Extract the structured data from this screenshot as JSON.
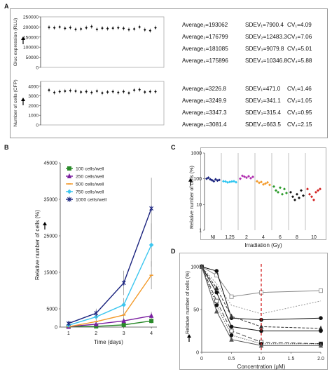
{
  "panel_labels": {
    "a": "A",
    "b": "B",
    "c": "C",
    "d": "D"
  },
  "chart_data": [
    {
      "id": "A-top",
      "type": "scatter",
      "ylabel": "Gluc expression (RLU)",
      "yticks": [
        0,
        50000,
        100000,
        150000,
        200000,
        250000
      ],
      "ytick_labels": [
        "0",
        "50000",
        "100000",
        "150000",
        "200000",
        "250000"
      ],
      "ylim": [
        0,
        250000
      ],
      "values": [
        198000,
        196000,
        200000,
        193000,
        197000,
        188000,
        190000,
        196000,
        202000,
        188000,
        194000,
        192000,
        194000,
        196000,
        193000,
        187000,
        190000,
        200000,
        186000,
        182000,
        196000
      ],
      "stats": [
        {
          "avg": "Average₁=193062",
          "sd": "SDEV₁=7900.4",
          "cv": "CV₁=4.09"
        },
        {
          "avg": "Average₂=176799",
          "sd": "SDEV₂=12483.3",
          "cv": "CV₂=7.06"
        },
        {
          "avg": "Average₃=181085",
          "sd": "SDEV₃=9079.8",
          "cv": "CV₃=5.01"
        },
        {
          "avg": "Average₄=175896",
          "sd": "SDEV₄=10346.8",
          "cv": "CV₄=5.88"
        }
      ]
    },
    {
      "id": "A-bottom",
      "type": "scatter",
      "ylabel": "Number of cells (CFP)",
      "yticks": [
        0,
        1000,
        2000,
        3000,
        4000
      ],
      "ytick_labels": [
        "0",
        "1000",
        "2000",
        "3000",
        "4000"
      ],
      "ylim": [
        0,
        4500
      ],
      "values": [
        3600,
        3350,
        3450,
        3500,
        3550,
        3500,
        3400,
        3450,
        3350,
        3500,
        3300,
        3400,
        3450,
        3350,
        3450,
        3300,
        3600,
        3650,
        3400,
        3450,
        3450
      ],
      "stats": [
        {
          "avg": "Average₁=3226.8",
          "sd": "SDEV₁=471.0",
          "cv": "CV₁=1.46"
        },
        {
          "avg": "Average₂=3249.9",
          "sd": "SDEV₂=341.1",
          "cv": "CV₂=1.05"
        },
        {
          "avg": "Average₃=3347.3",
          "sd": "SDEV₃=315.4",
          "cv": "CV₃=0.95"
        },
        {
          "avg": "Average₄=3081.4",
          "sd": "SDEV₄=663.5",
          "cv": "CV₄=2.15"
        }
      ]
    },
    {
      "id": "B",
      "type": "line",
      "xlabel": "Time (days)",
      "ylabel": "Relative number of cells (%)",
      "x": [
        1,
        2,
        3,
        4
      ],
      "xlim": [
        0.7,
        4.2
      ],
      "ylim": [
        0,
        45000
      ],
      "yticks": [
        0,
        5000,
        15000,
        25000,
        35000,
        45000
      ],
      "ytick_labels": [
        "0",
        "5000",
        "15000",
        "25000",
        "35000",
        "45000"
      ],
      "xticks": [
        "1",
        "2",
        "3",
        "4"
      ],
      "series": [
        {
          "name": "100 cells/well",
          "color": "#2a8a2a",
          "marker": "square",
          "values": [
            100,
            200,
            600,
            1700
          ]
        },
        {
          "name": "250 cells/well",
          "color": "#7a1fa0",
          "marker": "triangle",
          "values": [
            100,
            800,
            1700,
            3100
          ]
        },
        {
          "name": "500 cells/well",
          "color": "#f39a2a",
          "marker": "bar",
          "values": [
            100,
            1500,
            3300,
            14200
          ]
        },
        {
          "name": "750 cells/well",
          "color": "#3cc6ef",
          "marker": "diamond",
          "values": [
            500,
            2800,
            6100,
            22500
          ]
        },
        {
          "name": "1000 cells/well",
          "color": "#1a237e",
          "marker": "x",
          "values": [
            1000,
            3800,
            12100,
            32500
          ]
        }
      ]
    },
    {
      "id": "C",
      "type": "scatter",
      "xlabel": "Irradiation (Gy)",
      "ylabel": "Relative number of cells (%)",
      "yscale": "log",
      "ylim": [
        1,
        1000
      ],
      "yticks": [
        1,
        10,
        100,
        1000
      ],
      "ytick_labels": [
        "1",
        "10",
        "100",
        "1000"
      ],
      "xticks": [
        "NI",
        "1.25",
        "2",
        "4",
        "6",
        "8",
        "10"
      ],
      "groups": [
        {
          "color": "#1a237e",
          "values": [
            100,
            110,
            95,
            88,
            80,
            95,
            85,
            90
          ]
        },
        {
          "color": "#2cc5f0",
          "values": [
            80,
            78,
            72,
            75,
            78,
            80,
            73
          ]
        },
        {
          "color": "#b12fb0",
          "values": [
            100,
            130,
            120,
            110,
            125,
            105,
            118
          ]
        },
        {
          "color": "#f39a2a",
          "values": [
            80,
            70,
            75,
            60,
            65,
            72,
            58
          ]
        },
        {
          "color": "#2a9a2a",
          "values": [
            50,
            35,
            30,
            45,
            25,
            40,
            28
          ]
        },
        {
          "color": "#111111",
          "values": [
            30,
            20,
            15,
            25,
            18,
            35,
            22
          ]
        },
        {
          "color": "#d22020",
          "values": [
            40,
            25,
            20,
            15,
            30,
            35,
            40
          ]
        }
      ]
    },
    {
      "id": "D",
      "type": "line",
      "xlabel": "Concentration (μM)",
      "ylabel": "Relative number of cells (%)",
      "xlim": [
        0,
        2.0
      ],
      "ylim": [
        0,
        100
      ],
      "xticks": [
        0,
        0.5,
        1.0,
        1.5,
        2.0
      ],
      "xtick_labels": [
        "0",
        "0.5",
        "1.0",
        "1.5",
        "2.0"
      ],
      "yticks": [
        0,
        50,
        100
      ],
      "ytick_labels": [
        "0",
        "50",
        "100"
      ],
      "vline": 1.0,
      "series": [
        {
          "color": "#888888",
          "dash": "",
          "marker": "square",
          "points": [
            [
              0,
              100
            ],
            [
              0.25,
              90
            ],
            [
              0.5,
              65
            ],
            [
              1.0,
              70
            ],
            [
              2.0,
              72
            ]
          ]
        },
        {
          "color": "#999999",
          "dash": "2,2",
          "marker": "none",
          "points": [
            [
              0,
              100
            ],
            [
              0.25,
              80
            ],
            [
              0.5,
              55
            ],
            [
              1.0,
              45
            ],
            [
              2.0,
              60
            ]
          ]
        },
        {
          "color": "#111111",
          "dash": "",
          "marker": "circle",
          "points": [
            [
              0,
              100
            ],
            [
              0.25,
              95
            ],
            [
              0.5,
              40
            ],
            [
              1.0,
              38
            ],
            [
              2.0,
              40
            ]
          ]
        },
        {
          "color": "#333333",
          "dash": "4,2",
          "marker": "triangle",
          "points": [
            [
              0,
              100
            ],
            [
              0.25,
              75
            ],
            [
              0.5,
              42
            ],
            [
              1.0,
              30
            ],
            [
              2.0,
              28
            ]
          ]
        },
        {
          "color": "#111111",
          "dash": "",
          "marker": "circle",
          "points": [
            [
              0,
              100
            ],
            [
              0.25,
              70
            ],
            [
              0.5,
              30
            ],
            [
              1.0,
              25
            ],
            [
              2.0,
              25
            ]
          ]
        },
        {
          "color": "#444444",
          "dash": "6,3",
          "marker": "square",
          "points": [
            [
              0,
              100
            ],
            [
              0.25,
              60
            ],
            [
              0.5,
              25
            ],
            [
              1.0,
              12
            ],
            [
              2.0,
              10
            ]
          ]
        },
        {
          "color": "#111111",
          "dash": "1,2",
          "marker": "circle",
          "points": [
            [
              0,
              100
            ],
            [
              0.25,
              55
            ],
            [
              0.5,
              20
            ],
            [
              1.0,
              10
            ],
            [
              2.0,
              10
            ]
          ]
        },
        {
          "color": "#555555",
          "dash": "",
          "marker": "triangle",
          "points": [
            [
              0,
              100
            ],
            [
              0.25,
              48
            ],
            [
              0.5,
              15
            ],
            [
              1.0,
              8
            ],
            [
              2.0,
              8
            ]
          ]
        }
      ]
    }
  ]
}
